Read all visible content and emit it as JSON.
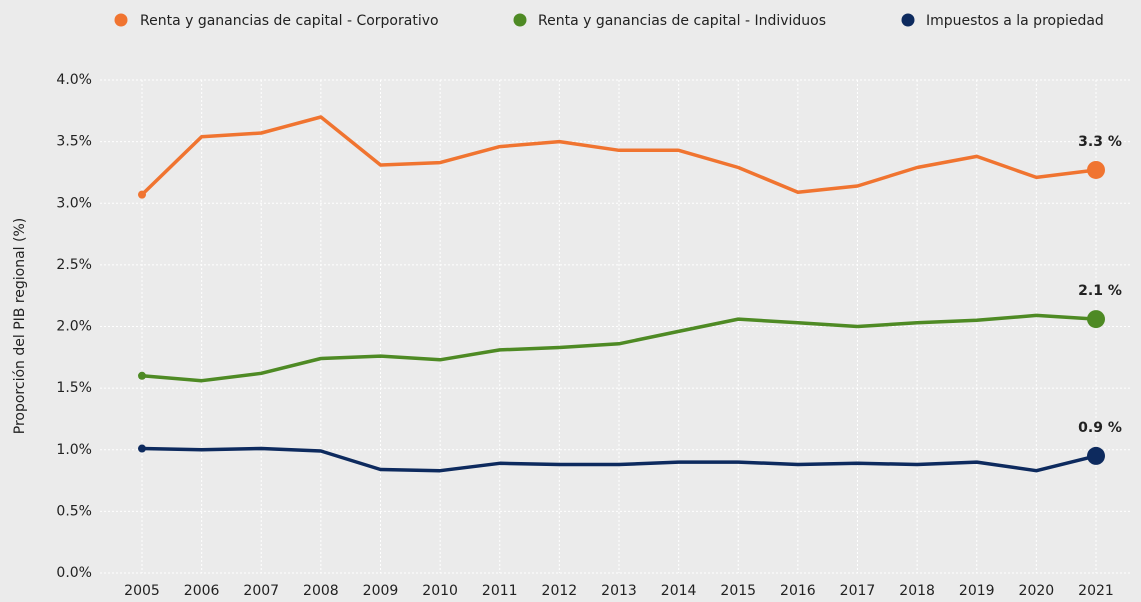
{
  "chart_data": {
    "type": "line",
    "y_label": "Proporción del PIB regional (%)",
    "categories": [
      "2005",
      "2006",
      "2007",
      "2008",
      "2009",
      "2010",
      "2011",
      "2012",
      "2013",
      "2014",
      "2015",
      "2016",
      "2017",
      "2018",
      "2019",
      "2020",
      "2021"
    ],
    "series": [
      {
        "name": "Renta y ganancias de capital - Corporativo",
        "color": "#f07430",
        "values": [
          3.07,
          3.54,
          3.57,
          3.7,
          3.31,
          3.33,
          3.46,
          3.5,
          3.43,
          3.43,
          3.29,
          3.09,
          3.14,
          3.29,
          3.38,
          3.21,
          3.27
        ],
        "value_labels": [
          null,
          null,
          null,
          null,
          null,
          null,
          null,
          null,
          null,
          null,
          null,
          null,
          null,
          null,
          null,
          null,
          "3.3 %"
        ]
      },
      {
        "name": "Renta y ganancias de capital - Individuos",
        "color": "#4e8a24",
        "values": [
          1.6,
          1.56,
          1.62,
          1.74,
          1.76,
          1.73,
          1.81,
          1.83,
          1.86,
          1.96,
          2.06,
          2.03,
          2.0,
          2.03,
          2.05,
          2.09,
          2.06
        ],
        "value_labels": [
          null,
          null,
          null,
          null,
          null,
          null,
          null,
          null,
          null,
          null,
          null,
          null,
          null,
          null,
          null,
          null,
          "2.1 %"
        ]
      },
      {
        "name": "Impuestos a la propiedad",
        "color": "#0d2a5e",
        "values": [
          1.01,
          1.0,
          1.01,
          0.99,
          0.84,
          0.83,
          0.89,
          0.88,
          0.88,
          0.9,
          0.9,
          0.88,
          0.89,
          0.88,
          0.9,
          0.83,
          0.95
        ],
        "value_labels": [
          null,
          null,
          null,
          null,
          null,
          null,
          null,
          null,
          null,
          null,
          null,
          null,
          null,
          null,
          null,
          null,
          "0.9 %"
        ]
      }
    ],
    "ylim": [
      0,
      4
    ],
    "yticks": [
      {
        "value": 0,
        "label": "0.0%"
      },
      {
        "value": 0.5,
        "label": "0.5%"
      },
      {
        "value": 1,
        "label": "1.0%"
      },
      {
        "value": 1.5,
        "label": "1.5%"
      },
      {
        "value": 2,
        "label": "2.0%"
      },
      {
        "value": 2.5,
        "label": "2.5%"
      },
      {
        "value": 3,
        "label": "3.0%"
      },
      {
        "value": 3.5,
        "label": "3.5%"
      },
      {
        "value": 4,
        "label": "4.0%"
      }
    ],
    "grid": true,
    "legend": "top"
  }
}
